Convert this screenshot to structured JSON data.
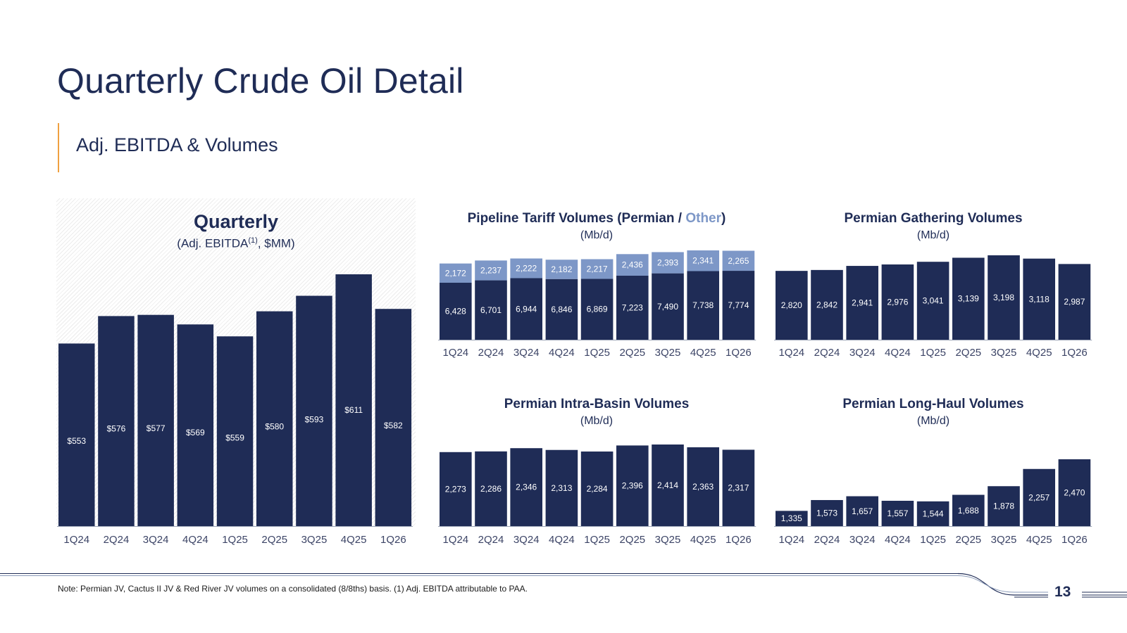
{
  "title": "Quarterly Crude Oil Detail",
  "subtitle": "Adj. EBITDA & Volumes",
  "ebitda_panel": {
    "title": "Quarterly",
    "subtitle_prefix": "(Adj. EBITDA",
    "subtitle_sup": "(1)",
    "subtitle_suffix": ", $MM)"
  },
  "tariff_panel": {
    "title_prefix": "Pipeline Tariff Volumes (Permian / ",
    "title_other": "Other",
    "title_suffix": ")",
    "unit": "(Mb/d)"
  },
  "gathering_panel": {
    "title": "Permian Gathering Volumes",
    "unit": "(Mb/d)"
  },
  "intrabasin_panel": {
    "title": "Permian Intra-Basin Volumes",
    "unit": "(Mb/d)"
  },
  "longhaul_panel": {
    "title": "Permian Long-Haul Volumes",
    "unit": "(Mb/d)"
  },
  "footer": {
    "note": "Note: Permian JV, Cactus II JV & Red River JV volumes on a consolidated (8/8ths) basis. (1) Adj. EBITDA attributable to PAA.",
    "page_number": "13"
  },
  "colors": {
    "navy": "#1f2c56",
    "light_blue": "#7d97c7",
    "accent_orange": "#f0a040"
  },
  "chart_data": [
    {
      "id": "ebitda",
      "type": "bar",
      "title": "Quarterly",
      "ylabel": "(Adj. EBITDA(1), $MM)",
      "categories": [
        "1Q24",
        "2Q24",
        "3Q24",
        "4Q24",
        "1Q25",
        "2Q25",
        "3Q25",
        "4Q25",
        "1Q26"
      ],
      "values": [
        553,
        576,
        577,
        569,
        559,
        580,
        593,
        611,
        582
      ],
      "labels": [
        "$553",
        "$576",
        "$577",
        "$569",
        "$559",
        "$580",
        "$593",
        "$611",
        "$582"
      ],
      "ylim": [
        400,
        630
      ]
    },
    {
      "id": "tariff",
      "type": "bar",
      "stacked": true,
      "title": "Pipeline Tariff Volumes (Permian / Other)",
      "ylabel": "(Mb/d)",
      "categories": [
        "1Q24",
        "2Q24",
        "3Q24",
        "4Q24",
        "1Q25",
        "2Q25",
        "3Q25",
        "4Q25",
        "1Q26"
      ],
      "series": [
        {
          "name": "Permian",
          "color": "#1f2c56",
          "values": [
            6428,
            6701,
            6944,
            6846,
            6869,
            7223,
            7490,
            7738,
            7774
          ]
        },
        {
          "name": "Other",
          "color": "#7d97c7",
          "values": [
            2172,
            2237,
            2222,
            2182,
            2217,
            2436,
            2393,
            2341,
            2265
          ]
        }
      ],
      "ylim": [
        0,
        10300
      ]
    },
    {
      "id": "gathering",
      "type": "bar",
      "title": "Permian Gathering Volumes",
      "ylabel": "(Mb/d)",
      "categories": [
        "1Q24",
        "2Q24",
        "3Q24",
        "4Q24",
        "1Q25",
        "2Q25",
        "3Q25",
        "4Q25",
        "1Q26"
      ],
      "values": [
        2820,
        2842,
        2941,
        2976,
        3041,
        3139,
        3198,
        3118,
        2987
      ],
      "ylim": [
        1150,
        3250
      ]
    },
    {
      "id": "intrabasin",
      "type": "bar",
      "title": "Permian Intra-Basin Volumes",
      "ylabel": "(Mb/d)",
      "categories": [
        "1Q24",
        "2Q24",
        "3Q24",
        "4Q24",
        "1Q25",
        "2Q25",
        "3Q25",
        "4Q25",
        "1Q26"
      ],
      "values": [
        2273,
        2286,
        2346,
        2313,
        2284,
        2396,
        2414,
        2363,
        2317
      ],
      "ylim": [
        900,
        2450
      ]
    },
    {
      "id": "longhaul",
      "type": "bar",
      "title": "Permian Long-Haul Volumes",
      "ylabel": "(Mb/d)",
      "categories": [
        "1Q24",
        "2Q24",
        "3Q24",
        "4Q24",
        "1Q25",
        "2Q25",
        "3Q25",
        "4Q25",
        "1Q26"
      ],
      "values": [
        1335,
        1573,
        1657,
        1557,
        1544,
        1688,
        1878,
        2257,
        2470
      ],
      "ylim": [
        1000,
        2650
      ]
    }
  ]
}
